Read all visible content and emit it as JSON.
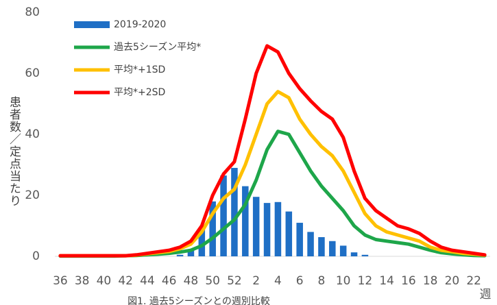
{
  "chart_data": {
    "type": "bar_line",
    "y_label": "患者数／定点当たり",
    "x_label": "週",
    "caption": "図1. 過去5シーズンとの週別比較",
    "categories": [
      "36",
      null,
      "38",
      null,
      "40",
      null,
      "42",
      null,
      "44",
      null,
      "46",
      null,
      "48",
      null,
      "50",
      null,
      "52",
      null,
      "2",
      null,
      "4",
      null,
      "6",
      null,
      "8",
      null,
      "10",
      null,
      "12",
      null,
      "14",
      null,
      "16",
      null,
      "18",
      null,
      "20",
      null,
      "22",
      null
    ],
    "ylim": [
      0,
      80
    ],
    "yticks": [
      0,
      20,
      40,
      60,
      80
    ],
    "series": [
      {
        "name": "2019-2020",
        "kind": "bar",
        "color": "#1f6fc5",
        "values": [
          0,
          0,
          0,
          0,
          0,
          0,
          0,
          0,
          0,
          0,
          0,
          0.5,
          2,
          9,
          18,
          26.5,
          29,
          23,
          19.5,
          17.5,
          17.8,
          14.7,
          11,
          8,
          6.3,
          5,
          3.5,
          1.3,
          0.5,
          null,
          null,
          null,
          null,
          null,
          null,
          null,
          null,
          null,
          null,
          null
        ]
      },
      {
        "name": "過去5シーズン平均*",
        "kind": "line",
        "color": "#1ea64a",
        "values": [
          0.1,
          0.1,
          0.1,
          0.1,
          0.1,
          0.1,
          0.2,
          0.3,
          0.5,
          0.7,
          1,
          1.4,
          2,
          3.5,
          6,
          9,
          12,
          17,
          25,
          35,
          41,
          40,
          34,
          28,
          23,
          19,
          15,
          10,
          7,
          5.5,
          5,
          4.5,
          4,
          3,
          2,
          1.2,
          0.8,
          0.5,
          0.3,
          0.2
        ]
      },
      {
        "name": "平均*+1SD",
        "kind": "line",
        "color": "#ffc000",
        "values": [
          0.2,
          0.2,
          0.2,
          0.2,
          0.2,
          0.2,
          0.2,
          0.4,
          0.8,
          1.2,
          1.6,
          2.5,
          4,
          8,
          14,
          19,
          22,
          30,
          40,
          50,
          54,
          52,
          45,
          40,
          36,
          33,
          28,
          21,
          14,
          10,
          8,
          7,
          6,
          5,
          3,
          2,
          1.5,
          1,
          0.7,
          0.4
        ]
      },
      {
        "name": "平均*+2SD",
        "kind": "line",
        "color": "#ff0000",
        "values": [
          0.2,
          0.2,
          0.2,
          0.2,
          0.2,
          0.2,
          0.2,
          0.5,
          1,
          1.5,
          2,
          3,
          5,
          10,
          20,
          27,
          31,
          45,
          60,
          69,
          67,
          60,
          55,
          51,
          47.5,
          45,
          39,
          28,
          19,
          15,
          12.5,
          10,
          9,
          7.5,
          5,
          3,
          2,
          1.5,
          1,
          0.5
        ]
      }
    ]
  }
}
